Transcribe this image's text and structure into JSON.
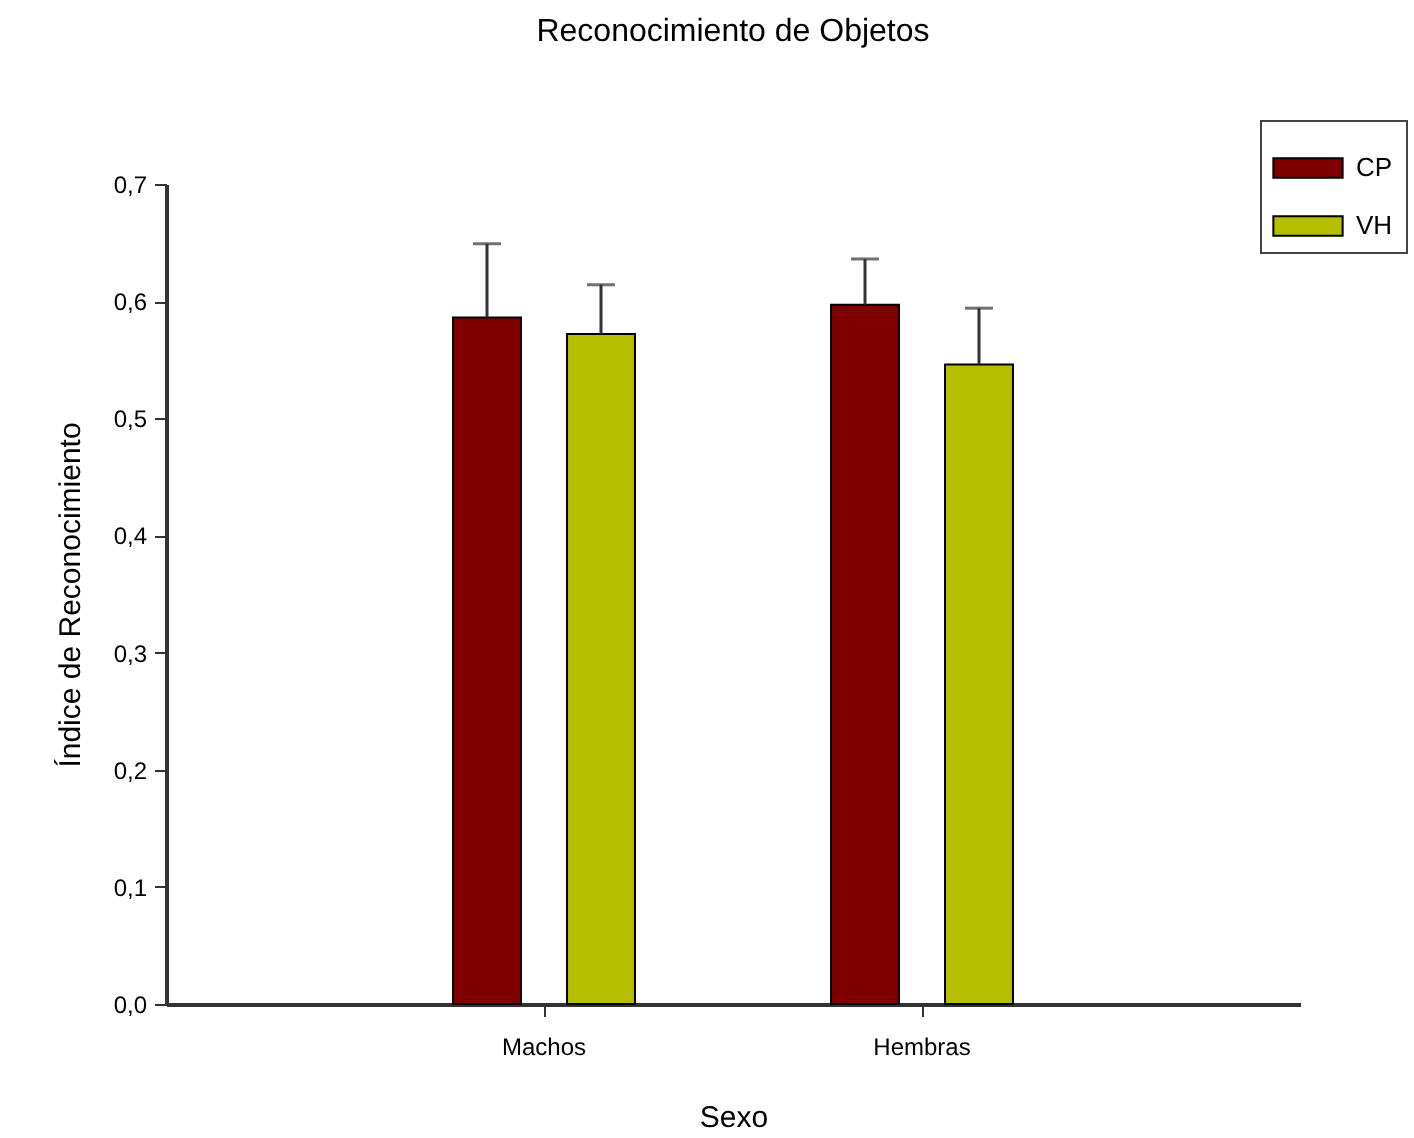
{
  "chart_data": {
    "type": "bar",
    "title": "Reconocimiento de Objetos",
    "xlabel": "Sexo",
    "ylabel": "Índice de Reconocimiento",
    "categories": [
      "Machos",
      "Hembras"
    ],
    "series": [
      {
        "name": "CP",
        "color": "#800000",
        "values": [
          0.586,
          0.597
        ],
        "errors": [
          [
            0.586,
            0.649
          ],
          [
            0.597,
            0.636
          ]
        ]
      },
      {
        "name": "VH",
        "color": "#b5bf00",
        "values": [
          0.572,
          0.546
        ],
        "errors": [
          [
            0.572,
            0.614
          ],
          [
            0.546,
            0.594
          ]
        ]
      }
    ],
    "ylim": [
      0,
      0.7
    ],
    "yticks": [
      {
        "value": 0,
        "label": "0,0"
      },
      {
        "value": 0.1,
        "label": "0,1"
      },
      {
        "value": 0.2,
        "label": "0,2"
      },
      {
        "value": 0.3,
        "label": "0,3"
      },
      {
        "value": 0.4,
        "label": "0,4"
      },
      {
        "value": 0.5,
        "label": "0,5"
      },
      {
        "value": 0.6,
        "label": "0,6"
      },
      {
        "value": 0.7,
        "label": "0,7"
      }
    ],
    "grid": false,
    "legend": "top right"
  }
}
